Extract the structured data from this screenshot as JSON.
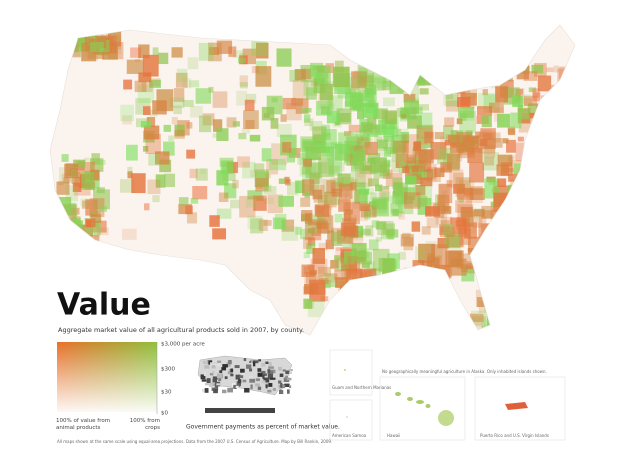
{
  "title": "Value",
  "subtitle": "Aggregate market value of all agricultural products sold in 2007, by county.",
  "legend": {
    "scale_labels": [
      "$3,000 per acre",
      "$300",
      "$30",
      "$0"
    ],
    "animal_label": "100% of value from animal products",
    "crops_label": "100% from crops"
  },
  "government_caption": "Government payments as percent of market value.",
  "insets": {
    "caption": "No geographically meaningful agriculture in Alaska. Only inhabited islands shown.",
    "names": [
      "Guam and Northern Marianas",
      "American Samoa",
      "Hawaii",
      "Puerto Rico and U.S. Virgin Islands"
    ]
  },
  "footnote": "All maps shown at the same scale using equal-area projections. Data from the 2007 U.S. Census of Agriculture. Map by Bill Rankin, 2009."
}
